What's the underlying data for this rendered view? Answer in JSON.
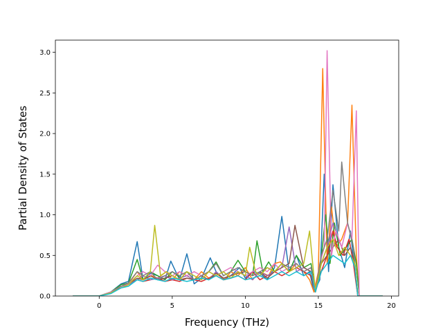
{
  "chart_data": {
    "type": "line",
    "title": "",
    "xlabel": "Frequency (THz)",
    "ylabel": "Partial Density of States",
    "xlim": [
      -3.0,
      20.5
    ],
    "ylim": [
      0.0,
      3.15
    ],
    "xticks": [
      0,
      5,
      10,
      15,
      20
    ],
    "xtick_labels": [
      "0",
      "5",
      "10",
      "15",
      "20"
    ],
    "yticks": [
      0.0,
      0.5,
      1.0,
      1.5,
      2.0,
      2.5,
      3.0
    ],
    "ytick_labels": [
      "0.0",
      "0.5",
      "1.0",
      "1.5",
      "2.0",
      "2.5",
      "3.0"
    ],
    "grid": false,
    "legend": "none",
    "series": [
      {
        "color": "#1f77b4",
        "x": [
          -1.8,
          0,
          0.8,
          1.5,
          2.0,
          2.6,
          3.0,
          3.5,
          4.0,
          4.5,
          4.9,
          5.5,
          6.0,
          6.5,
          7.0,
          7.6,
          8.0,
          8.5,
          9.0,
          9.6,
          10.0,
          10.5,
          11.0,
          11.5,
          12.0,
          12.5,
          13.0,
          13.5,
          14.0,
          14.4,
          14.7,
          15.1,
          15.4,
          15.7,
          16.0,
          16.4,
          16.8,
          17.2,
          17.5,
          17.7,
          19.4
        ],
        "y": [
          0,
          0,
          0.05,
          0.15,
          0.18,
          0.67,
          0.2,
          0.28,
          0.25,
          0.2,
          0.43,
          0.2,
          0.52,
          0.15,
          0.22,
          0.47,
          0.3,
          0.2,
          0.25,
          0.35,
          0.22,
          0.3,
          0.28,
          0.2,
          0.35,
          0.98,
          0.3,
          0.5,
          0.25,
          0.3,
          0.05,
          0.2,
          1.5,
          0.3,
          1.37,
          0.6,
          0.35,
          0.8,
          0.3,
          0,
          0
        ]
      },
      {
        "color": "#ff7f0e",
        "x": [
          -1.8,
          0,
          0.8,
          1.5,
          2.0,
          2.6,
          3.0,
          3.6,
          4.0,
          4.6,
          5.0,
          5.5,
          6.0,
          6.5,
          7.0,
          7.5,
          8.0,
          8.6,
          9.0,
          9.5,
          10.0,
          10.5,
          11.0,
          11.6,
          12.0,
          12.4,
          13.0,
          13.5,
          14.0,
          14.4,
          14.7,
          15.0,
          15.3,
          15.6,
          15.9,
          16.2,
          16.6,
          17.0,
          17.3,
          17.6,
          17.8,
          19.4
        ],
        "y": [
          0,
          0,
          0.04,
          0.12,
          0.15,
          0.3,
          0.2,
          0.25,
          0.22,
          0.3,
          0.2,
          0.3,
          0.25,
          0.2,
          0.3,
          0.22,
          0.28,
          0.2,
          0.3,
          0.25,
          0.35,
          0.2,
          0.3,
          0.25,
          0.4,
          0.42,
          0.3,
          0.4,
          0.3,
          0.2,
          0.05,
          0.3,
          2.8,
          0.4,
          1.1,
          0.6,
          0.7,
          0.9,
          2.35,
          0.5,
          0,
          0
        ]
      },
      {
        "color": "#2ca02c",
        "x": [
          -1.8,
          0,
          0.8,
          1.5,
          2.0,
          2.6,
          3.0,
          3.5,
          4.0,
          4.5,
          5.0,
          5.6,
          6.0,
          6.5,
          7.0,
          7.5,
          8.0,
          8.5,
          9.0,
          9.5,
          10.0,
          10.5,
          10.8,
          11.2,
          11.6,
          12.0,
          12.5,
          13.0,
          13.5,
          14.0,
          14.5,
          14.8,
          15.1,
          15.5,
          15.8,
          16.1,
          16.5,
          16.9,
          17.3,
          17.6,
          17.8,
          19.4
        ],
        "y": [
          0,
          0,
          0.05,
          0.14,
          0.16,
          0.45,
          0.2,
          0.3,
          0.25,
          0.2,
          0.3,
          0.22,
          0.3,
          0.2,
          0.25,
          0.3,
          0.42,
          0.25,
          0.3,
          0.44,
          0.3,
          0.25,
          0.68,
          0.3,
          0.42,
          0.3,
          0.4,
          0.3,
          0.5,
          0.35,
          0.4,
          0.05,
          0.3,
          1.0,
          0.4,
          0.9,
          0.5,
          0.6,
          0.7,
          0.4,
          0,
          0
        ]
      },
      {
        "color": "#d62728",
        "x": [
          -1.8,
          0,
          0.8,
          1.5,
          2.0,
          2.6,
          3.0,
          3.5,
          4.0,
          4.5,
          5.0,
          5.5,
          6.0,
          6.5,
          7.0,
          7.5,
          8.0,
          8.5,
          9.0,
          9.5,
          10.0,
          10.5,
          11.0,
          11.5,
          12.0,
          12.5,
          13.0,
          13.5,
          14.0,
          14.5,
          14.8,
          15.2,
          15.6,
          16.0,
          16.3,
          16.7,
          17.1,
          17.4,
          17.7,
          19.4
        ],
        "y": [
          0,
          0,
          0.04,
          0.12,
          0.15,
          0.2,
          0.18,
          0.2,
          0.22,
          0.18,
          0.2,
          0.18,
          0.22,
          0.2,
          0.18,
          0.22,
          0.25,
          0.2,
          0.22,
          0.25,
          0.2,
          0.3,
          0.2,
          0.25,
          0.3,
          0.25,
          0.3,
          0.35,
          0.3,
          0.25,
          0.05,
          0.3,
          0.5,
          0.8,
          0.6,
          0.5,
          0.7,
          0.4,
          0,
          0
        ]
      },
      {
        "color": "#9467bd",
        "x": [
          -1.8,
          0,
          0.8,
          1.5,
          2.0,
          2.6,
          3.0,
          3.5,
          4.0,
          4.5,
          5.0,
          5.5,
          6.0,
          6.5,
          7.0,
          7.5,
          8.0,
          8.5,
          9.0,
          9.5,
          10.0,
          10.5,
          11.0,
          11.5,
          12.0,
          12.5,
          13.0,
          13.5,
          14.0,
          14.5,
          14.8,
          15.2,
          15.6,
          16.0,
          16.4,
          16.8,
          17.2,
          17.5,
          17.7,
          19.4
        ],
        "y": [
          0,
          0,
          0.04,
          0.1,
          0.14,
          0.2,
          0.25,
          0.2,
          0.22,
          0.25,
          0.2,
          0.22,
          0.25,
          0.2,
          0.25,
          0.2,
          0.3,
          0.22,
          0.25,
          0.3,
          0.25,
          0.2,
          0.3,
          0.25,
          0.3,
          0.35,
          0.85,
          0.3,
          0.35,
          0.3,
          0.05,
          0.4,
          0.6,
          0.9,
          0.7,
          0.5,
          0.6,
          0.4,
          0,
          0
        ]
      },
      {
        "color": "#8c564b",
        "x": [
          -1.8,
          0,
          0.8,
          1.5,
          2.0,
          2.6,
          3.0,
          3.5,
          4.0,
          4.5,
          5.0,
          5.5,
          6.0,
          6.5,
          7.0,
          7.5,
          8.0,
          8.5,
          9.0,
          9.5,
          10.0,
          10.5,
          11.0,
          11.5,
          12.0,
          12.5,
          13.0,
          13.4,
          14.0,
          14.5,
          14.8,
          15.2,
          15.6,
          16.0,
          16.4,
          16.8,
          17.2,
          17.5,
          17.7,
          19.4
        ],
        "y": [
          0,
          0,
          0.04,
          0.12,
          0.15,
          0.22,
          0.2,
          0.25,
          0.2,
          0.22,
          0.25,
          0.2,
          0.22,
          0.2,
          0.25,
          0.2,
          0.28,
          0.22,
          0.25,
          0.28,
          0.3,
          0.25,
          0.3,
          0.22,
          0.3,
          0.35,
          0.4,
          0.87,
          0.35,
          0.3,
          0.05,
          0.4,
          0.5,
          0.6,
          0.7,
          0.5,
          0.6,
          0.4,
          0,
          0
        ]
      },
      {
        "color": "#e377c2",
        "x": [
          -1.8,
          0,
          0.8,
          1.5,
          2.0,
          2.6,
          3.0,
          3.5,
          4.0,
          4.5,
          5.0,
          5.5,
          6.0,
          6.5,
          7.0,
          7.5,
          8.0,
          8.5,
          9.0,
          9.5,
          10.0,
          10.5,
          11.0,
          11.5,
          12.0,
          12.5,
          13.0,
          13.5,
          14.0,
          14.5,
          14.8,
          15.1,
          15.4,
          15.6,
          15.9,
          16.2,
          16.6,
          17.0,
          17.3,
          17.6,
          17.8,
          19.4
        ],
        "y": [
          0,
          0,
          0.05,
          0.12,
          0.15,
          0.25,
          0.3,
          0.25,
          0.38,
          0.3,
          0.25,
          0.3,
          0.25,
          0.3,
          0.25,
          0.3,
          0.25,
          0.3,
          0.35,
          0.3,
          0.25,
          0.3,
          0.35,
          0.3,
          0.4,
          0.3,
          0.35,
          0.4,
          0.3,
          0.35,
          0.05,
          0.4,
          0.6,
          3.02,
          0.5,
          0.8,
          0.6,
          0.9,
          0.7,
          2.28,
          0,
          0
        ]
      },
      {
        "color": "#7f7f7f",
        "x": [
          -1.8,
          0,
          0.8,
          1.5,
          2.0,
          2.6,
          3.0,
          3.5,
          4.0,
          4.5,
          5.0,
          5.5,
          6.0,
          6.5,
          7.0,
          7.5,
          8.0,
          8.5,
          9.0,
          9.5,
          10.0,
          10.5,
          11.0,
          11.5,
          12.0,
          12.5,
          13.0,
          13.5,
          14.0,
          14.5,
          14.8,
          15.2,
          15.6,
          16.0,
          16.4,
          16.6,
          17.0,
          17.4,
          17.7,
          19.4
        ],
        "y": [
          0,
          0,
          0.04,
          0.12,
          0.16,
          0.3,
          0.25,
          0.3,
          0.2,
          0.25,
          0.3,
          0.25,
          0.3,
          0.2,
          0.25,
          0.3,
          0.4,
          0.25,
          0.3,
          0.35,
          0.3,
          0.25,
          0.3,
          0.35,
          0.3,
          0.4,
          0.35,
          0.4,
          0.3,
          0.35,
          0.05,
          0.5,
          0.7,
          1.3,
          0.8,
          1.65,
          0.9,
          0.6,
          0,
          0
        ]
      },
      {
        "color": "#bcbd22",
        "x": [
          -1.8,
          0,
          0.8,
          1.5,
          2.0,
          2.6,
          3.0,
          3.5,
          3.8,
          4.2,
          4.6,
          5.0,
          5.5,
          6.0,
          6.5,
          7.0,
          7.5,
          8.0,
          8.5,
          9.0,
          9.5,
          10.0,
          10.3,
          10.7,
          11.0,
          11.5,
          12.0,
          12.5,
          13.0,
          13.5,
          14.0,
          14.4,
          14.8,
          15.2,
          15.6,
          16.0,
          16.4,
          16.8,
          17.2,
          17.5,
          17.7,
          19.4
        ],
        "y": [
          0,
          0,
          0.04,
          0.1,
          0.14,
          0.25,
          0.2,
          0.3,
          0.87,
          0.25,
          0.3,
          0.25,
          0.2,
          0.3,
          0.25,
          0.2,
          0.3,
          0.25,
          0.3,
          0.22,
          0.3,
          0.25,
          0.6,
          0.3,
          0.25,
          0.35,
          0.3,
          0.4,
          0.3,
          0.35,
          0.4,
          0.8,
          0.05,
          0.4,
          0.6,
          0.7,
          0.5,
          0.6,
          0.5,
          0.4,
          0,
          0
        ]
      },
      {
        "color": "#17becf",
        "x": [
          -1.8,
          0,
          0.8,
          1.5,
          2.0,
          2.6,
          3.0,
          3.5,
          4.0,
          4.5,
          5.0,
          5.5,
          6.0,
          6.5,
          7.0,
          7.5,
          8.0,
          8.5,
          9.0,
          9.5,
          10.0,
          10.5,
          11.0,
          11.5,
          12.0,
          12.5,
          13.0,
          13.5,
          14.0,
          14.5,
          14.8,
          15.2,
          15.6,
          16.0,
          16.4,
          16.8,
          17.2,
          17.5,
          17.7,
          19.4
        ],
        "y": [
          0,
          0,
          0.03,
          0.1,
          0.12,
          0.2,
          0.18,
          0.22,
          0.2,
          0.18,
          0.22,
          0.2,
          0.18,
          0.2,
          0.22,
          0.2,
          0.25,
          0.2,
          0.22,
          0.25,
          0.2,
          0.22,
          0.25,
          0.2,
          0.25,
          0.3,
          0.25,
          0.3,
          0.25,
          0.3,
          0.05,
          0.3,
          0.4,
          0.5,
          0.45,
          0.4,
          0.5,
          0.35,
          0,
          0
        ]
      }
    ]
  }
}
